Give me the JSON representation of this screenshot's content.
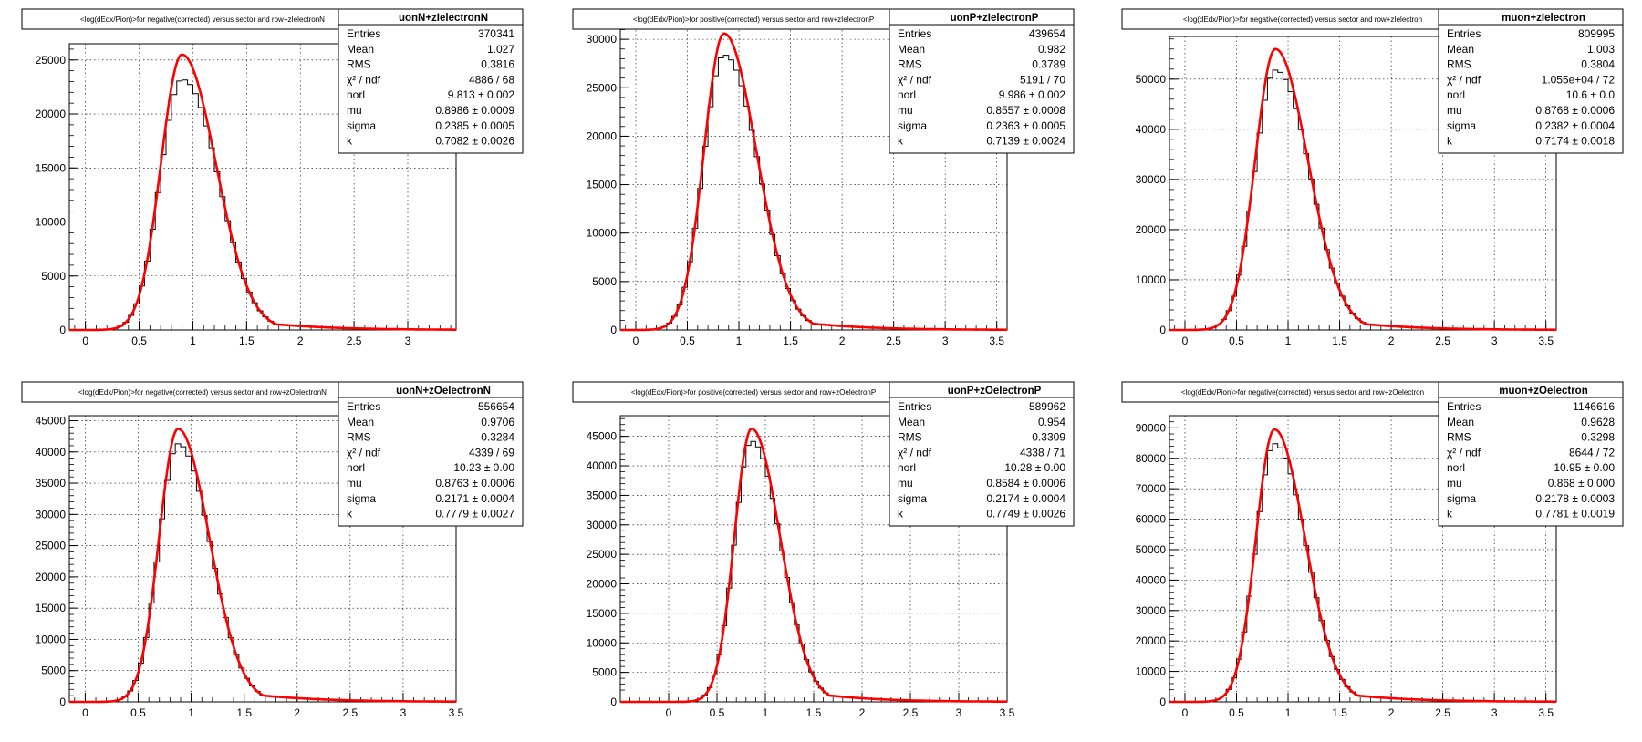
{
  "chart_data": [
    {
      "type": "histogram",
      "title": "<log(dEdx/Pion)>for negative(corrected) versus sector and row+zIelectronN",
      "stats_name": "uonN+zIelectronN",
      "stats": [
        {
          "label": "Entries",
          "value": "370341"
        },
        {
          "label": "Mean",
          "value": "1.027"
        },
        {
          "label": "RMS",
          "value": "0.3816"
        },
        {
          "label": "χ² / ndf",
          "value": "4886 / 68"
        },
        {
          "label": "norl",
          "value": "9.813 ± 0.002"
        },
        {
          "label": "mu",
          "value": "0.8986 ± 0.0009"
        },
        {
          "label": "sigma",
          "value": "0.2385 ± 0.0005"
        },
        {
          "label": "k",
          "value": "0.7082 ± 0.0026"
        }
      ],
      "xlim": [
        -0.15,
        3.45
      ],
      "ylim": [
        0,
        26500
      ],
      "xticks": [
        "0",
        "0.5",
        "1",
        "1.5",
        "2",
        "2.5",
        "3"
      ],
      "yticks": [
        "0",
        "5000",
        "10000",
        "15000",
        "20000",
        "25000"
      ],
      "fit": {
        "mu": 0.8986,
        "sigma": 0.2385,
        "k": 0.7082,
        "peak": 25500
      },
      "hist_peak": 23200,
      "grid": true,
      "colors": {
        "fit": "#ff0000",
        "hist": "#000000"
      }
    },
    {
      "type": "histogram",
      "title": "<log(dEdx/Pion)>for positive(corrected) versus sector and row+zIelectronP",
      "stats_name": "uonP+zIelectronP",
      "stats": [
        {
          "label": "Entries",
          "value": "439654"
        },
        {
          "label": "Mean",
          "value": "0.982"
        },
        {
          "label": "RMS",
          "value": "0.3789"
        },
        {
          "label": "χ² / ndf",
          "value": "5191 / 70"
        },
        {
          "label": "norl",
          "value": "9.986 ± 0.002"
        },
        {
          "label": "mu",
          "value": "0.8557 ± 0.0008"
        },
        {
          "label": "sigma",
          "value": "0.2363 ± 0.0005"
        },
        {
          "label": "k",
          "value": "0.7139 ± 0.0024"
        }
      ],
      "xlim": [
        -0.15,
        3.6
      ],
      "ylim": [
        0,
        31800
      ],
      "xticks": [
        "0",
        "0.5",
        "1",
        "1.5",
        "2",
        "2.5",
        "3",
        "3.5"
      ],
      "yticks": [
        "0",
        "5000",
        "10000",
        "15000",
        "20000",
        "25000",
        "30000"
      ],
      "fit": {
        "mu": 0.8557,
        "sigma": 0.2363,
        "k": 0.7139,
        "peak": 30600
      },
      "hist_peak": 28400,
      "grid": true,
      "colors": {
        "fit": "#ff0000",
        "hist": "#000000"
      }
    },
    {
      "type": "histogram",
      "title": "<log(dEdx/Pion)>for negative(corrected) versus sector and row+zIelectron",
      "stats_name": "muon+zIelectron",
      "stats": [
        {
          "label": "Entries",
          "value": "809995"
        },
        {
          "label": "Mean",
          "value": "1.003"
        },
        {
          "label": "RMS",
          "value": "0.3804"
        },
        {
          "label": "χ² / ndf",
          "value": "1.055e+04 / 72"
        },
        {
          "label": "norl",
          "value": "10.6 ± 0.0"
        },
        {
          "label": "mu",
          "value": "0.8768 ± 0.0006"
        },
        {
          "label": "sigma",
          "value": "0.2382 ± 0.0004"
        },
        {
          "label": "k",
          "value": "0.7174 ± 0.0018"
        }
      ],
      "xlim": [
        -0.15,
        3.6
      ],
      "ylim": [
        0,
        58500
      ],
      "xticks": [
        "0",
        "0.5",
        "1",
        "1.5",
        "2",
        "2.5",
        "3",
        "3.5"
      ],
      "yticks": [
        "0",
        "10000",
        "20000",
        "30000",
        "40000",
        "50000"
      ],
      "fit": {
        "mu": 0.8768,
        "sigma": 0.2382,
        "k": 0.7174,
        "peak": 56000
      },
      "hist_peak": 51800,
      "grid": true,
      "colors": {
        "fit": "#ff0000",
        "hist": "#000000"
      }
    },
    {
      "type": "histogram",
      "title": "<log(dEdx/Pion)>for negative(corrected) versus sector and row+zOelectronN",
      "stats_name": "uonN+zOelectronN",
      "stats": [
        {
          "label": "Entries",
          "value": "556654"
        },
        {
          "label": "Mean",
          "value": "0.9706"
        },
        {
          "label": "RMS",
          "value": "0.3284"
        },
        {
          "label": "χ² / ndf",
          "value": "4339 / 69"
        },
        {
          "label": "norl",
          "value": "10.23 ± 0.00"
        },
        {
          "label": "mu",
          "value": "0.8763 ± 0.0006"
        },
        {
          "label": "sigma",
          "value": "0.2171 ± 0.0004"
        },
        {
          "label": "k",
          "value": "0.7779 ± 0.0027"
        }
      ],
      "xlim": [
        -0.15,
        3.5
      ],
      "ylim": [
        0,
        45800
      ],
      "xticks": [
        "0",
        "0.5",
        "1",
        "1.5",
        "2",
        "2.5",
        "3",
        "3.5"
      ],
      "yticks": [
        "0",
        "5000",
        "10000",
        "15000",
        "20000",
        "25000",
        "30000",
        "35000",
        "40000",
        "45000"
      ],
      "fit": {
        "mu": 0.8763,
        "sigma": 0.2171,
        "k": 0.7779,
        "peak": 43700
      },
      "hist_peak": 41300,
      "grid": true,
      "colors": {
        "fit": "#ff0000",
        "hist": "#000000"
      }
    },
    {
      "type": "histogram",
      "title": "<log(dEdx/Pion)>for positive(corrected) versus sector and row+zOelectronP",
      "stats_name": "uonP+zOelectronP",
      "stats": [
        {
          "label": "Entries",
          "value": "589962"
        },
        {
          "label": "Mean",
          "value": "0.954"
        },
        {
          "label": "RMS",
          "value": "0.3309"
        },
        {
          "label": "χ² / ndf",
          "value": "4338 / 71"
        },
        {
          "label": "norl",
          "value": "10.28 ± 0.00"
        },
        {
          "label": "mu",
          "value": "0.8584 ± 0.0006"
        },
        {
          "label": "sigma",
          "value": "0.2174 ± 0.0004"
        },
        {
          "label": "k",
          "value": "0.7749 ± 0.0026"
        }
      ],
      "xlim": [
        -0.5,
        3.5
      ],
      "ylim": [
        0,
        48500
      ],
      "xticks": [
        "0",
        "0.5",
        "1",
        "1.5",
        "2",
        "2.5",
        "3",
        "3.5"
      ],
      "yticks": [
        "0",
        "5000",
        "10000",
        "15000",
        "20000",
        "25000",
        "30000",
        "35000",
        "40000",
        "45000"
      ],
      "fit": {
        "mu": 0.8584,
        "sigma": 0.2174,
        "k": 0.7749,
        "peak": 46300
      },
      "hist_peak": 44200,
      "grid": true,
      "colors": {
        "fit": "#ff0000",
        "hist": "#000000"
      }
    },
    {
      "type": "histogram",
      "title": "<log(dEdx/Pion)>for negative(corrected) versus sector and row+zOelectron",
      "stats_name": "muon+zOelectron",
      "stats": [
        {
          "label": "Entries",
          "value": "1146616"
        },
        {
          "label": "Mean",
          "value": "0.9628"
        },
        {
          "label": "RMS",
          "value": "0.3298"
        },
        {
          "label": "χ² / ndf",
          "value": "8644 / 72"
        },
        {
          "label": "norl",
          "value": "10.95 ± 0.00"
        },
        {
          "label": "mu",
          "value": "0.868 ± 0.000"
        },
        {
          "label": "sigma",
          "value": "0.2178 ± 0.0003"
        },
        {
          "label": "k",
          "value": "0.7781 ± 0.0019"
        }
      ],
      "xlim": [
        -0.15,
        3.6
      ],
      "ylim": [
        0,
        94000
      ],
      "xticks": [
        "0",
        "0.5",
        "1",
        "1.5",
        "2",
        "2.5",
        "3",
        "3.5"
      ],
      "yticks": [
        "0",
        "10000",
        "20000",
        "30000",
        "40000",
        "50000",
        "60000",
        "70000",
        "80000",
        "90000"
      ],
      "fit": {
        "mu": 0.868,
        "sigma": 0.2178,
        "k": 0.7781,
        "peak": 89500
      },
      "hist_peak": 84800,
      "grid": true,
      "colors": {
        "fit": "#ff0000",
        "hist": "#000000"
      }
    }
  ]
}
